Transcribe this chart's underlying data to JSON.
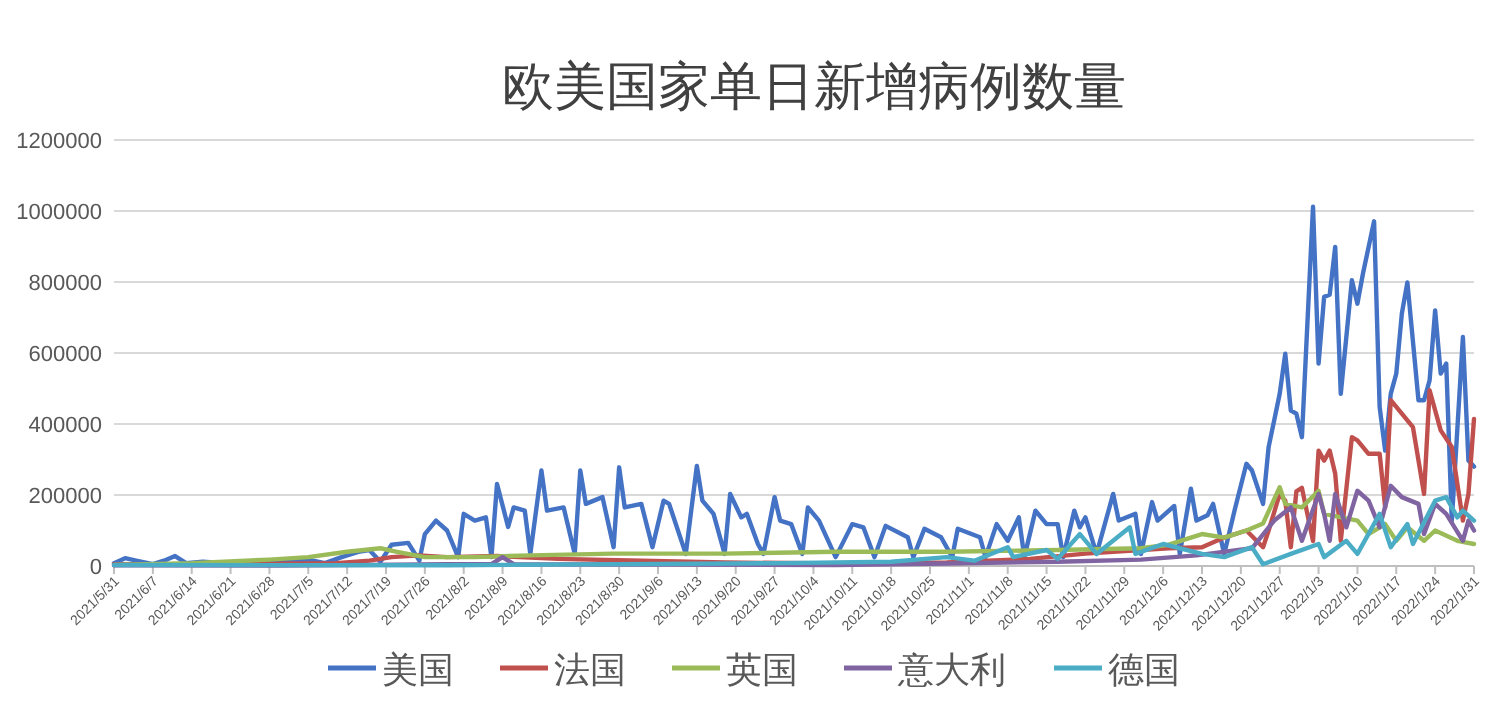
{
  "chart_data": {
    "type": "line",
    "title": "欧美国家单日新增病例数量",
    "grid": "y",
    "legend": "bottom",
    "xlim": [
      "2021-05-31",
      "2022-01-31"
    ],
    "xticks": [
      {
        "value": "2021-05-31",
        "label": "2021/5/31"
      },
      {
        "value": "2021-06-07",
        "label": "2021/6/7"
      },
      {
        "value": "2021-06-14",
        "label": "2021/6/14"
      },
      {
        "value": "2021-06-21",
        "label": "2021/6/21"
      },
      {
        "value": "2021-06-28",
        "label": "2021/6/28"
      },
      {
        "value": "2021-07-05",
        "label": "2021/7/5"
      },
      {
        "value": "2021-07-12",
        "label": "2021/7/12"
      },
      {
        "value": "2021-07-19",
        "label": "2021/7/19"
      },
      {
        "value": "2021-07-26",
        "label": "2021/7/26"
      },
      {
        "value": "2021-08-02",
        "label": "2021/8/2"
      },
      {
        "value": "2021-08-09",
        "label": "2021/8/9"
      },
      {
        "value": "2021-08-16",
        "label": "2021/8/16"
      },
      {
        "value": "2021-08-23",
        "label": "2021/8/23"
      },
      {
        "value": "2021-08-30",
        "label": "2021/8/30"
      },
      {
        "value": "2021-09-06",
        "label": "2021/9/6"
      },
      {
        "value": "2021-09-13",
        "label": "2021/9/13"
      },
      {
        "value": "2021-09-20",
        "label": "2021/9/20"
      },
      {
        "value": "2021-09-27",
        "label": "2021/9/27"
      },
      {
        "value": "2021-10-04",
        "label": "2021/10/4"
      },
      {
        "value": "2021-10-11",
        "label": "2021/10/11"
      },
      {
        "value": "2021-10-18",
        "label": "2021/10/18"
      },
      {
        "value": "2021-10-25",
        "label": "2021/10/25"
      },
      {
        "value": "2021-11-01",
        "label": "2021/11/1"
      },
      {
        "value": "2021-11-08",
        "label": "2021/11/8"
      },
      {
        "value": "2021-11-15",
        "label": "2021/11/15"
      },
      {
        "value": "2021-11-22",
        "label": "2021/11/22"
      },
      {
        "value": "2021-11-29",
        "label": "2021/11/29"
      },
      {
        "value": "2021-12-06",
        "label": "2021/12/6"
      },
      {
        "value": "2021-12-13",
        "label": "2021/12/13"
      },
      {
        "value": "2021-12-20",
        "label": "2021/12/20"
      },
      {
        "value": "2021-12-27",
        "label": "2021/12/27"
      },
      {
        "value": "2022-01-03",
        "label": "2022/1/3"
      },
      {
        "value": "2022-01-10",
        "label": "2022/1/10"
      },
      {
        "value": "2022-01-17",
        "label": "2022/1/17"
      },
      {
        "value": "2022-01-24",
        "label": "2022/1/24"
      },
      {
        "value": "2022-01-31",
        "label": "2022/1/31"
      }
    ],
    "ylim": [
      0,
      1200000
    ],
    "yticks": [
      0,
      200000,
      400000,
      600000,
      800000,
      1000000,
      1200000
    ],
    "series": [
      {
        "name": "美国",
        "color": "#4472c4",
        "x": [
          "2021-05-31",
          "2021-06-02",
          "2021-06-04",
          "2021-06-07",
          "2021-06-09",
          "2021-06-11",
          "2021-06-13",
          "2021-06-16",
          "2021-06-20",
          "2021-06-25",
          "2021-06-30",
          "2021-07-05",
          "2021-07-08",
          "2021-07-11",
          "2021-07-14",
          "2021-07-16",
          "2021-07-18",
          "2021-07-20",
          "2021-07-23",
          "2021-07-25",
          "2021-07-26",
          "2021-07-28",
          "2021-07-30",
          "2021-08-01",
          "2021-08-02",
          "2021-08-04",
          "2021-08-06",
          "2021-08-07",
          "2021-08-08",
          "2021-08-10",
          "2021-08-11",
          "2021-08-13",
          "2021-08-14",
          "2021-08-16",
          "2021-08-17",
          "2021-08-20",
          "2021-08-22",
          "2021-08-23",
          "2021-08-24",
          "2021-08-27",
          "2021-08-29",
          "2021-08-30",
          "2021-08-31",
          "2021-09-03",
          "2021-09-05",
          "2021-09-07",
          "2021-09-08",
          "2021-09-11",
          "2021-09-13",
          "2021-09-14",
          "2021-09-16",
          "2021-09-18",
          "2021-09-19",
          "2021-09-21",
          "2021-09-22",
          "2021-09-24",
          "2021-09-25",
          "2021-09-27",
          "2021-09-28",
          "2021-09-30",
          "2021-10-02",
          "2021-10-03",
          "2021-10-05",
          "2021-10-08",
          "2021-10-11",
          "2021-10-13",
          "2021-10-15",
          "2021-10-17",
          "2021-10-21",
          "2021-10-22",
          "2021-10-24",
          "2021-10-27",
          "2021-10-29",
          "2021-10-30",
          "2021-11-03",
          "2021-11-04",
          "2021-11-06",
          "2021-11-08",
          "2021-11-10",
          "2021-11-11",
          "2021-11-13",
          "2021-11-15",
          "2021-11-17",
          "2021-11-18",
          "2021-11-20",
          "2021-11-21",
          "2021-11-22",
          "2021-11-24",
          "2021-11-27",
          "2021-11-28",
          "2021-12-01",
          "2021-12-02",
          "2021-12-04",
          "2021-12-05",
          "2021-12-08",
          "2021-12-09",
          "2021-12-11",
          "2021-12-12",
          "2021-12-14",
          "2021-12-15",
          "2021-12-17",
          "2021-12-19",
          "2021-12-21",
          "2021-12-22",
          "2021-12-24",
          "2021-12-25",
          "2021-12-27",
          "2021-12-28",
          "2021-12-29",
          "2021-12-30",
          "2021-12-31",
          "2022-01-02",
          "2022-01-03",
          "2022-01-04",
          "2022-01-05",
          "2022-01-06",
          "2022-01-07",
          "2022-01-09",
          "2022-01-10",
          "2022-01-11",
          "2022-01-13",
          "2022-01-14",
          "2022-01-15",
          "2022-01-16",
          "2022-01-17",
          "2022-01-18",
          "2022-01-19",
          "2022-01-21",
          "2022-01-22",
          "2022-01-23",
          "2022-01-24",
          "2022-01-25",
          "2022-01-26",
          "2022-01-27",
          "2022-01-29",
          "2022-01-30",
          "2022-01-31"
        ],
        "values": [
          8000,
          22000,
          15000,
          5000,
          15000,
          28000,
          8000,
          12000,
          8000,
          10000,
          12000,
          18000,
          8000,
          25000,
          40000,
          45000,
          12000,
          60000,
          65000,
          15000,
          90000,
          128000,
          100000,
          25000,
          147000,
          128000,
          137000,
          25000,
          231000,
          110000,
          165000,
          156000,
          34000,
          269000,
          156000,
          165000,
          34000,
          269000,
          175000,
          194000,
          53000,
          278000,
          165000,
          175000,
          53000,
          184000,
          175000,
          34000,
          282000,
          184000,
          147000,
          34000,
          203000,
          137000,
          147000,
          62000,
          34000,
          194000,
          128000,
          118000,
          34000,
          165000,
          128000,
          25000,
          118000,
          109000,
          25000,
          113000,
          81000,
          25000,
          105000,
          81000,
          25000,
          105000,
          81000,
          25000,
          118000,
          71000,
          137000,
          25000,
          156000,
          118000,
          118000,
          25000,
          156000,
          109000,
          137000,
          34000,
          203000,
          128000,
          147000,
          34000,
          180000,
          128000,
          169000,
          34000,
          218000,
          128000,
          143000,
          175000,
          34000,
          165000,
          288000,
          269000,
          175000,
          335000,
          485000,
          598000,
          438000,
          429000,
          363000,
          1012000,
          570000,
          758000,
          764000,
          899000,
          485000,
          805000,
          739000,
          824000,
          971000,
          448000,
          325000,
          485000,
          542000,
          711000,
          799000,
          467000,
          467000,
          523000,
          720000,
          542000,
          570000,
          128000,
          645000,
          297000,
          280000
        ]
      },
      {
        "name": "法国",
        "color": "#c0504d",
        "x": [
          "2021-05-31",
          "2021-06-20",
          "2021-07-10",
          "2021-07-16",
          "2021-07-20",
          "2021-07-25",
          "2021-07-30",
          "2021-08-08",
          "2021-08-19",
          "2021-09-03",
          "2021-09-18",
          "2021-10-08",
          "2021-10-28",
          "2021-11-12",
          "2021-11-22",
          "2021-12-02",
          "2021-12-07",
          "2021-12-13",
          "2021-12-17",
          "2021-12-21",
          "2021-12-24",
          "2021-12-25",
          "2021-12-27",
          "2021-12-28",
          "2021-12-29",
          "2021-12-30",
          "2021-12-31",
          "2022-01-02",
          "2022-01-03",
          "2022-01-04",
          "2022-01-05",
          "2022-01-06",
          "2022-01-07",
          "2022-01-09",
          "2022-01-10",
          "2022-01-12",
          "2022-01-14",
          "2022-01-15",
          "2022-01-16",
          "2022-01-18",
          "2022-01-20",
          "2022-01-22",
          "2022-01-23",
          "2022-01-25",
          "2022-01-27",
          "2022-01-29",
          "2022-01-30",
          "2022-01-31"
        ],
        "values": [
          5000,
          5000,
          8000,
          15000,
          25000,
          30000,
          25000,
          28000,
          20000,
          15000,
          10000,
          7000,
          10000,
          20000,
          35000,
          45000,
          50000,
          53000,
          80000,
          100000,
          53000,
          100000,
          203000,
          184000,
          53000,
          210000,
          220000,
          70000,
          325000,
          297000,
          325000,
          260000,
          71000,
          363000,
          354000,
          316000,
          316000,
          165000,
          467000,
          429000,
          391000,
          203000,
          495000,
          382000,
          335000,
          128000,
          203000,
          414000
        ]
      },
      {
        "name": "英国",
        "color": "#9bbb59",
        "x": [
          "2021-05-31",
          "2021-06-14",
          "2021-06-28",
          "2021-07-05",
          "2021-07-12",
          "2021-07-18",
          "2021-07-21",
          "2021-07-26",
          "2021-08-04",
          "2021-08-14",
          "2021-08-29",
          "2021-09-18",
          "2021-10-08",
          "2021-10-28",
          "2021-11-17",
          "2021-12-02",
          "2021-12-07",
          "2021-12-13",
          "2021-12-17",
          "2021-12-21",
          "2021-12-24",
          "2021-12-27",
          "2021-12-28",
          "2021-12-31",
          "2022-01-03",
          "2022-01-04",
          "2022-01-10",
          "2022-01-12",
          "2022-01-15",
          "2022-01-17",
          "2022-01-19",
          "2022-01-22",
          "2022-01-24",
          "2022-01-28",
          "2022-01-31"
        ],
        "values": [
          3000,
          8000,
          18000,
          25000,
          40000,
          50000,
          40000,
          25000,
          25000,
          30000,
          35000,
          35000,
          40000,
          40000,
          45000,
          50000,
          60000,
          90000,
          80000,
          100000,
          120000,
          222000,
          175000,
          165000,
          212000,
          147000,
          128000,
          90000,
          118000,
          71000,
          109000,
          71000,
          100000,
          71000,
          62000
        ]
      },
      {
        "name": "意大利",
        "color": "#8064a2",
        "x": [
          "2021-05-31",
          "2021-06-30",
          "2021-07-30",
          "2021-08-07",
          "2021-08-09",
          "2021-08-11",
          "2021-09-08",
          "2021-10-08",
          "2021-10-28",
          "2021-11-17",
          "2021-12-02",
          "2021-12-12",
          "2021-12-22",
          "2021-12-26",
          "2021-12-29",
          "2021-12-31",
          "2022-01-03",
          "2022-01-04",
          "2022-01-05",
          "2022-01-06",
          "2022-01-08",
          "2022-01-10",
          "2022-01-12",
          "2022-01-14",
          "2022-01-16",
          "2022-01-18",
          "2022-01-21",
          "2022-01-22",
          "2022-01-24",
          "2022-01-26",
          "2022-01-29",
          "2022-01-30",
          "2022-01-31"
        ],
        "values": [
          2000,
          1000,
          5000,
          5000,
          25000,
          5000,
          4000,
          3000,
          7000,
          12000,
          18000,
          30000,
          50000,
          128000,
          165000,
          71000,
          203000,
          147000,
          71000,
          203000,
          109000,
          212000,
          184000,
          109000,
          226000,
          194000,
          175000,
          90000,
          175000,
          147000,
          71000,
          128000,
          100000
        ]
      },
      {
        "name": "德国",
        "color": "#4bacc6",
        "x": [
          "2021-05-31",
          "2021-07-30",
          "2021-09-28",
          "2021-10-18",
          "2021-10-28",
          "2021-11-02",
          "2021-11-08",
          "2021-11-09",
          "2021-11-15",
          "2021-11-17",
          "2021-11-21",
          "2021-11-24",
          "2021-11-30",
          "2021-12-01",
          "2021-12-06",
          "2021-12-13",
          "2021-12-17",
          "2021-12-22",
          "2021-12-24",
          "2021-12-29",
          "2022-01-03",
          "2022-01-04",
          "2022-01-08",
          "2022-01-10",
          "2022-01-14",
          "2022-01-16",
          "2022-01-19",
          "2022-01-20",
          "2022-01-24",
          "2022-01-26",
          "2022-01-28",
          "2022-01-29",
          "2022-01-31"
        ],
        "values": [
          3000,
          2000,
          8000,
          12000,
          25000,
          15000,
          53000,
          25000,
          45000,
          20000,
          90000,
          34000,
          109000,
          34000,
          62000,
          34000,
          25000,
          53000,
          5000,
          34000,
          62000,
          25000,
          71000,
          34000,
          147000,
          53000,
          118000,
          62000,
          184000,
          194000,
          137000,
          156000,
          128000
        ]
      }
    ]
  }
}
